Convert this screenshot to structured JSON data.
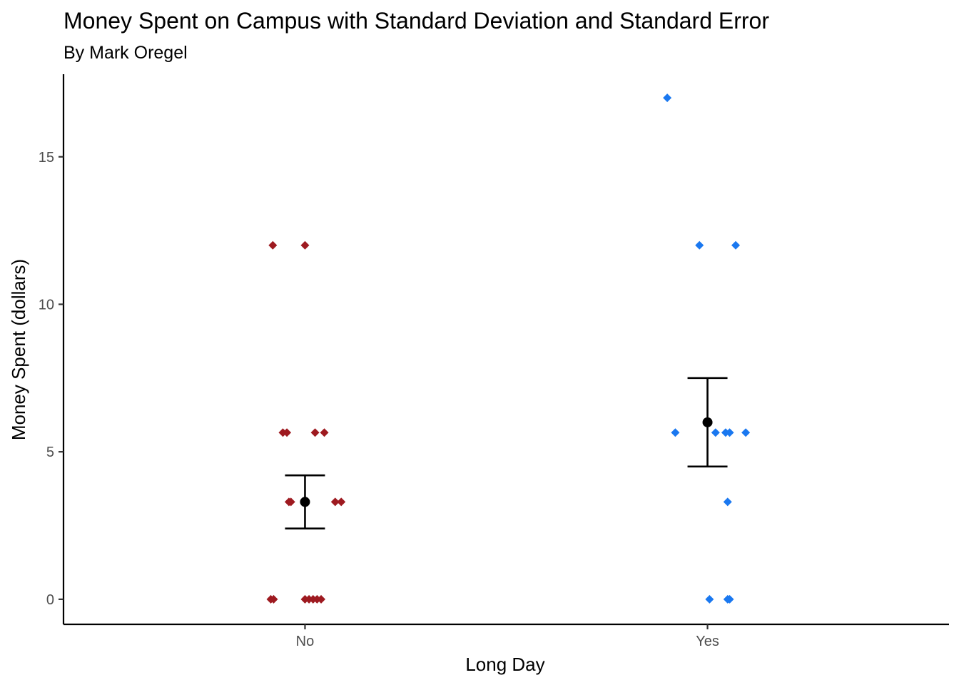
{
  "chart_data": {
    "type": "scatter",
    "title": "Money Spent on Campus with Standard Deviation and Standard Error",
    "subtitle": "By Mark Oregel",
    "xlabel": "Long Day",
    "ylabel": "Money Spent (dollars)",
    "categories": [
      "No",
      "Yes"
    ],
    "ylim": [
      -0.85,
      17.8
    ],
    "yticks": [
      0,
      5,
      10,
      15
    ],
    "grid": false,
    "legend": "none",
    "series": [
      {
        "category": "No",
        "color": "#9e1a20",
        "marker": "diamond",
        "points": [
          {
            "x": -0.08,
            "y": 12
          },
          {
            "x": 0.0,
            "y": 12
          },
          {
            "x": -0.055,
            "y": 5.65
          },
          {
            "x": -0.045,
            "y": 5.65
          },
          {
            "x": 0.025,
            "y": 5.65
          },
          {
            "x": 0.048,
            "y": 5.65
          },
          {
            "x": -0.04,
            "y": 3.3
          },
          {
            "x": -0.035,
            "y": 3.3
          },
          {
            "x": 0.075,
            "y": 3.3
          },
          {
            "x": 0.09,
            "y": 3.3
          },
          {
            "x": -0.085,
            "y": 0
          },
          {
            "x": -0.078,
            "y": 0
          },
          {
            "x": 0.0,
            "y": 0
          },
          {
            "x": 0.01,
            "y": 0
          },
          {
            "x": 0.02,
            "y": 0
          },
          {
            "x": 0.03,
            "y": 0
          },
          {
            "x": 0.04,
            "y": 0
          }
        ]
      },
      {
        "category": "Yes",
        "color": "#1a78f0",
        "marker": "diamond",
        "points": [
          {
            "x": 0.9,
            "y": 17
          },
          {
            "x": 0.98,
            "y": 12
          },
          {
            "x": 1.07,
            "y": 12
          },
          {
            "x": 0.92,
            "y": 5.65
          },
          {
            "x": 1.02,
            "y": 5.65
          },
          {
            "x": 1.045,
            "y": 5.65
          },
          {
            "x": 1.055,
            "y": 5.65
          },
          {
            "x": 1.095,
            "y": 5.65
          },
          {
            "x": 1.05,
            "y": 3.3
          },
          {
            "x": 1.005,
            "y": 0
          },
          {
            "x": 1.05,
            "y": 0
          },
          {
            "x": 1.055,
            "y": 0
          }
        ]
      }
    ],
    "summary": [
      {
        "category": "No",
        "mean": 3.3,
        "lower": 2.4,
        "upper": 4.2
      },
      {
        "category": "Yes",
        "mean": 6.0,
        "lower": 4.5,
        "upper": 7.5
      }
    ],
    "summary_color": "#000000"
  }
}
